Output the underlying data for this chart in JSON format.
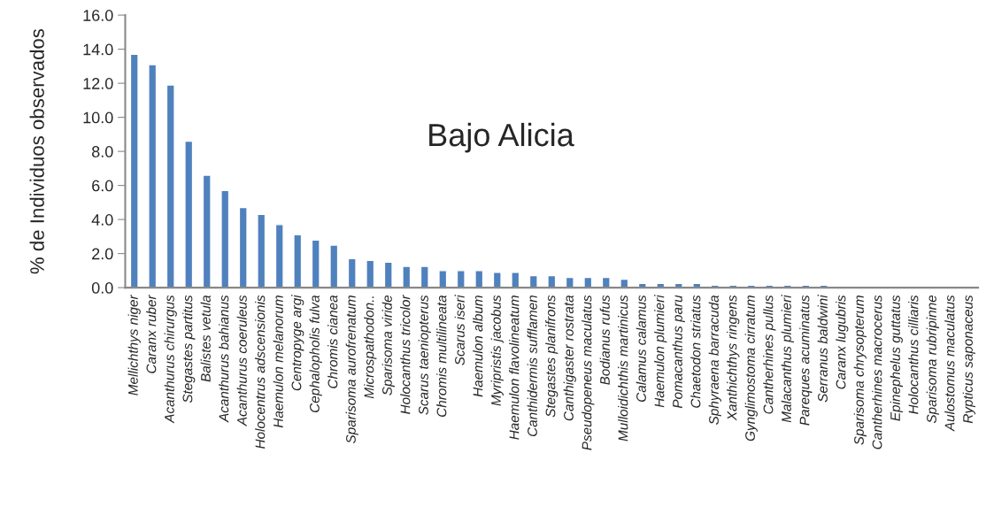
{
  "chart_data": {
    "type": "bar",
    "title": "Bajo Alicia",
    "ylabel": "% de Individuos observados",
    "categories": [
      "Mellichthys niger",
      "Caranx ruber",
      "Acanthurus chirurgus",
      "Stegastes partitus",
      "Balistes vetula",
      "Acanthurus bahianus",
      "Acanthurus coeruleus",
      "Holocentrus adscensionis",
      "Haemulon melanorum",
      "Centropyge argi",
      "Cephalopholis fulva",
      "Chromis cianea",
      "Sparisoma aurofrenatum",
      "Microspathodon..",
      "Sparisoma viride",
      "Holocanthus tricolor",
      "Scarus taeniopterus",
      "Chromis multilineata",
      "Scarus iseri",
      "Haemulon album",
      "Myripristis jacobus",
      "Haemulon flavolineatum",
      "Canthidermis sufflamen",
      "Stegastes planifrons",
      "Canthigaster rostrata",
      "Pseudopeneus maculatus",
      "Bodianus rufus",
      "Mulloidichthis martinicus",
      "Calamus calamus",
      "Haemulon plumieri",
      "Pomacanthus paru",
      "Chaetodon striatus",
      "Sphyraena barracuda",
      "Xanthichthys ringens",
      "Gynglimostoma cirratum",
      "Cantherhines pullus",
      "Malacanthus plumieri",
      "Pareques acuminatus",
      "Serranus baldwini",
      "Caranx lugubris",
      "Sparisoma chrysopterum",
      "Cantherhines macrocerus",
      "Epinephelus guttatus",
      "Holocanthus cilliaris",
      "Sparisoma rubripinne",
      "Aulostomus maculatus",
      "Rypticus saponaceus"
    ],
    "values": [
      13.7,
      13.1,
      11.9,
      8.6,
      6.6,
      5.7,
      4.7,
      4.3,
      3.7,
      3.1,
      2.8,
      2.5,
      1.7,
      1.6,
      1.5,
      1.25,
      1.25,
      1.0,
      1.0,
      1.0,
      0.9,
      0.9,
      0.7,
      0.7,
      0.6,
      0.6,
      0.6,
      0.5,
      0.25,
      0.25,
      0.25,
      0.25,
      0.15,
      0.15,
      0.15,
      0.15,
      0.15,
      0.15,
      0.15,
      0.05,
      0.05,
      0.05,
      0.05,
      0.05,
      0.05,
      0.05,
      0.05
    ],
    "color": "#4f81bd",
    "ylim": [
      0,
      16
    ],
    "yticks": [
      {
        "value": 0,
        "label": "0.0"
      },
      {
        "value": 2,
        "label": "2.0"
      },
      {
        "value": 4,
        "label": "4.0"
      },
      {
        "value": 6,
        "label": "6.0"
      },
      {
        "value": 8,
        "label": "8.0"
      },
      {
        "value": 10,
        "label": "10.0"
      },
      {
        "value": 12,
        "label": "12.0"
      },
      {
        "value": 14,
        "label": "14.0"
      },
      {
        "value": 16,
        "label": "16.0"
      }
    ],
    "grid": false,
    "legend": false
  }
}
